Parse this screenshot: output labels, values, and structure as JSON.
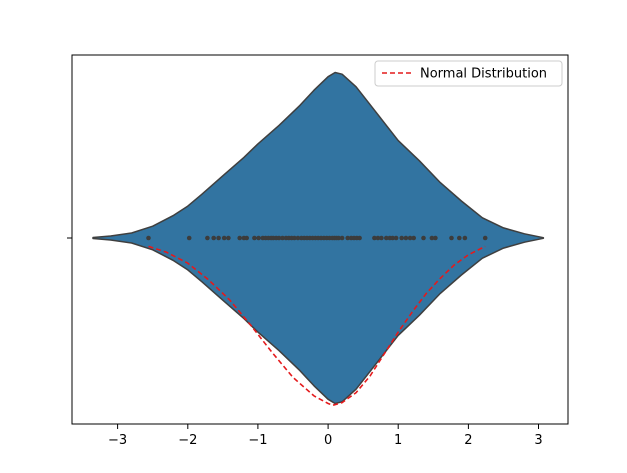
{
  "chart_data": {
    "type": "violin",
    "title": "",
    "xlabel": "",
    "ylabel": "",
    "xlim": [
      -3.65,
      3.42
    ],
    "x_ticks": [
      -3,
      -2,
      -1,
      0,
      1,
      2,
      3
    ],
    "x_tick_labels": [
      "−3",
      "−2",
      "−1",
      "0",
      "1",
      "2",
      "3"
    ],
    "grid": false,
    "legend_position": "top-right",
    "legend": [
      {
        "label": "Normal Distribution",
        "style": "dashed",
        "color": "#e41a1c"
      }
    ],
    "violin": {
      "color": "#3274a1",
      "edge_color": "#3f3f3f",
      "density_profile": {
        "x": [
          -3.35,
          -3.1,
          -2.8,
          -2.5,
          -2.2,
          -2.0,
          -1.8,
          -1.5,
          -1.2,
          -1.0,
          -0.7,
          -0.4,
          -0.2,
          0.0,
          0.1,
          0.2,
          0.4,
          0.7,
          1.0,
          1.3,
          1.6,
          1.9,
          2.2,
          2.5,
          2.8,
          3.0,
          3.07
        ],
        "half_width": [
          0.003,
          0.012,
          0.03,
          0.07,
          0.135,
          0.19,
          0.26,
          0.37,
          0.48,
          0.56,
          0.67,
          0.79,
          0.88,
          0.96,
          0.985,
          0.975,
          0.9,
          0.74,
          0.58,
          0.46,
          0.33,
          0.22,
          0.12,
          0.06,
          0.025,
          0.008,
          0.002
        ]
      },
      "points": [
        -2.56,
        -1.98,
        -1.72,
        -1.63,
        -1.56,
        -1.48,
        -1.42,
        -1.26,
        -1.2,
        -1.16,
        -1.05,
        -0.99,
        -0.93,
        -0.89,
        -0.85,
        -0.81,
        -0.78,
        -0.74,
        -0.7,
        -0.65,
        -0.6,
        -0.56,
        -0.52,
        -0.48,
        -0.43,
        -0.38,
        -0.34,
        -0.3,
        -0.26,
        -0.22,
        -0.18,
        -0.14,
        -0.1,
        -0.06,
        -0.02,
        0.02,
        0.06,
        0.09,
        0.12,
        0.15,
        0.2,
        0.28,
        0.33,
        0.37,
        0.41,
        0.45,
        0.66,
        0.71,
        0.76,
        0.83,
        0.88,
        0.92,
        0.97,
        1.05,
        1.11,
        1.17,
        1.22,
        1.36,
        1.48,
        1.53,
        1.76,
        1.87,
        1.95,
        2.24
      ],
      "point_color": "#3c3c3c"
    },
    "series": [
      {
        "name": "Normal Distribution",
        "line_style": "dashed",
        "color": "#e41a1c",
        "x": [
          -2.56,
          -2.3,
          -2.0,
          -1.7,
          -1.4,
          -1.1,
          -0.8,
          -0.5,
          -0.2,
          0.0,
          0.07,
          0.2,
          0.4,
          0.6,
          0.8,
          1.0,
          1.2,
          1.4,
          1.6,
          1.8,
          2.0,
          2.24
        ],
        "y": [
          0.05,
          0.085,
          0.15,
          0.25,
          0.37,
          0.52,
          0.68,
          0.83,
          0.94,
          0.985,
          0.995,
          0.98,
          0.92,
          0.82,
          0.69,
          0.56,
          0.44,
          0.33,
          0.24,
          0.16,
          0.1,
          0.05
        ]
      }
    ]
  }
}
